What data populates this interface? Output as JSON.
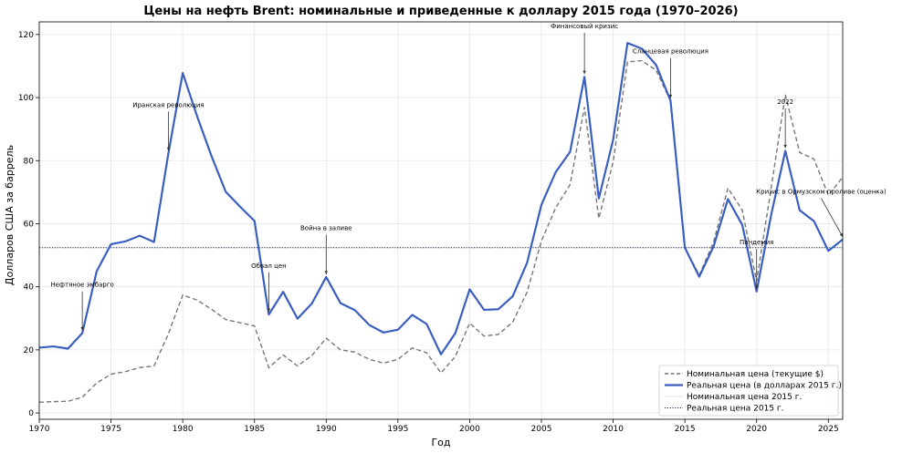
{
  "chart_data": {
    "type": "line",
    "title": "Цены на нефть Brent: номинальные и приведенные к доллару 2015 года (1970–2026)",
    "xlabel": "Год",
    "ylabel": "Долларов США за баррель",
    "xlim": [
      1970,
      2026
    ],
    "ylim": [
      -2,
      124
    ],
    "x_ticks": [
      1970,
      1975,
      1980,
      1985,
      1990,
      1995,
      2000,
      2005,
      2010,
      2015,
      2020,
      2025
    ],
    "y_ticks": [
      0,
      20,
      40,
      60,
      80,
      100,
      120
    ],
    "grid": true,
    "legend_position": "bottom-right",
    "x": [
      1970,
      1971,
      1972,
      1973,
      1974,
      1975,
      1976,
      1977,
      1978,
      1979,
      1980,
      1981,
      1982,
      1983,
      1984,
      1985,
      1986,
      1987,
      1988,
      1989,
      1990,
      1991,
      1992,
      1993,
      1994,
      1995,
      1996,
      1997,
      1998,
      1999,
      2000,
      2001,
      2002,
      2003,
      2004,
      2005,
      2006,
      2007,
      2008,
      2009,
      2010,
      2011,
      2012,
      2013,
      2014,
      2015,
      2016,
      2017,
      2018,
      2019,
      2020,
      2021,
      2022,
      2023,
      2024,
      2025,
      2026
    ],
    "series": [
      {
        "name": "Номинальная цена (текущие $)",
        "style": "dashed",
        "color": "#777777",
        "values": [
          3.4,
          3.6,
          3.7,
          5.0,
          9.5,
          12.3,
          13.1,
          14.4,
          14.9,
          25.1,
          37.4,
          35.8,
          32.9,
          29.6,
          28.6,
          27.6,
          14.4,
          18.4,
          14.9,
          18.2,
          23.7,
          20.0,
          19.3,
          17.0,
          15.8,
          17.0,
          20.6,
          19.1,
          12.7,
          17.9,
          28.5,
          24.4,
          24.9,
          28.8,
          38.3,
          54.5,
          65.1,
          72.4,
          97.0,
          61.7,
          79.6,
          111.3,
          111.7,
          108.6,
          98.9,
          52.4,
          43.7,
          54.2,
          71.3,
          64.3,
          41.8,
          70.9,
          100.9,
          82.6,
          80.5,
          69.0,
          74.8
        ]
      },
      {
        "name": "Реальная цена (в долларах 2015 г.)",
        "style": "solid",
        "color": "#3a5fc0",
        "values": [
          20.7,
          21.1,
          20.4,
          25.3,
          44.9,
          53.5,
          54.4,
          56.2,
          54.2,
          82.3,
          107.8,
          94.1,
          81.5,
          70.1,
          65.4,
          60.9,
          31.2,
          38.4,
          29.9,
          34.7,
          43.1,
          34.8,
          32.6,
          27.9,
          25.5,
          26.4,
          31.1,
          28.2,
          18.6,
          25.3,
          39.2,
          32.7,
          32.9,
          37.0,
          47.6,
          66.0,
          76.4,
          82.8,
          106.6,
          68.0,
          86.6,
          117.3,
          115.5,
          110.3,
          99.0,
          52.4,
          43.2,
          52.8,
          67.8,
          59.6,
          38.5,
          62.5,
          83.1,
          64.3,
          60.8,
          51.4,
          55.0
        ]
      },
      {
        "name": "Номинальная цена 2015 г.",
        "style": "thin",
        "color": "#dddddd",
        "value": 52.4
      },
      {
        "name": "Реальная цена 2015 г.",
        "style": "dotted",
        "color": "#1f2a55",
        "value": 52.4
      }
    ],
    "annotations": [
      {
        "text": "Нефтяное эмбарго",
        "x": 1973,
        "y": 25.3,
        "text_x": 1973,
        "text_y": 40
      },
      {
        "text": "Иранская революция",
        "x": 1979,
        "y": 82.3,
        "text_x": 1979,
        "text_y": 97
      },
      {
        "text": "Обвал цен",
        "x": 1986,
        "y": 31.2,
        "text_x": 1986,
        "text_y": 46
      },
      {
        "text": "Война в заливе",
        "x": 1990,
        "y": 43.1,
        "text_x": 1990,
        "text_y": 58
      },
      {
        "text": "Финансовый кризис",
        "x": 2008,
        "y": 106.6,
        "text_x": 2008,
        "text_y": 122
      },
      {
        "text": "Сланцевая революция",
        "x": 2014,
        "y": 99.0,
        "text_x": 2014,
        "text_y": 114
      },
      {
        "text": "Пандемия",
        "x": 2020,
        "y": 38.5,
        "text_x": 2020,
        "text_y": 53.5
      },
      {
        "text": "2022",
        "x": 2022,
        "y": 83.1,
        "text_x": 2022,
        "text_y": 98
      },
      {
        "text": "Кризис в Ормузском проливе (оценка)",
        "x": 2026,
        "y": 55.0,
        "text_x": 2024.5,
        "text_y": 69.5
      }
    ]
  }
}
